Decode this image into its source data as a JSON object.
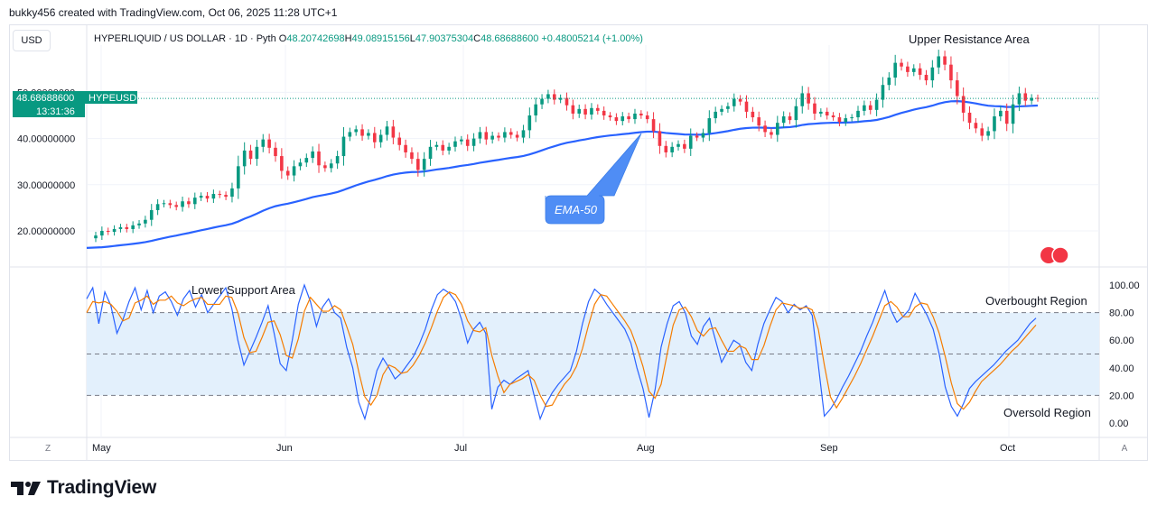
{
  "header": {
    "credit": "bukky456 created with TradingView.com, Oct 06, 2025 11:28 UTC+1",
    "currency": "USD",
    "symbol_line": "HYPERLIQUID / US DOLLAR · 1D · Pyth",
    "ohlc": {
      "o_label": "O",
      "o": "48.20742698",
      "h_label": "H",
      "h": "49.08915156",
      "l_label": "L",
      "l": "47.90375304",
      "c_label": "C",
      "c": "48.68688600",
      "change": "+0.48005214 (+1.00%)"
    }
  },
  "price_tag": {
    "price": "48.68688600",
    "symbol": "HYPEUSD",
    "countdown": "13:31:36"
  },
  "buttons": {
    "z": "Z",
    "a": "A"
  },
  "brand": "TradingView",
  "colors": {
    "up": "#089981",
    "down": "#f23645",
    "ema": "#2962ff",
    "stoch_k": "#2962ff",
    "stoch_d": "#f57c00",
    "band": "#e3f0fc",
    "tag": "#089981",
    "callout": "#4f8df5"
  },
  "chart_data": [
    {
      "type": "candlestick",
      "symbol": "HYPEUSD",
      "indicator": "EMA-50",
      "y_ticks": [
        "20.00000000",
        "30.00000000",
        "40.00000000",
        "50.00000000"
      ],
      "ylim": [
        14.5,
        58
      ],
      "x_ticks": [
        "May",
        "Jun",
        "Jul",
        "Aug",
        "Sep",
        "Oct"
      ],
      "annotations": {
        "upper": "Upper Resistance Area",
        "ema_label": "EMA-50"
      },
      "last_close": 48.69,
      "closes": [
        19.0,
        20.0,
        19.8,
        20.4,
        20.8,
        20.4,
        21.2,
        21.6,
        22.4,
        24.5,
        25.8,
        26.0,
        25.6,
        25.2,
        26.4,
        25.8,
        27.2,
        27.6,
        27.0,
        28.0,
        27.8,
        27.4,
        29.2,
        34.0,
        37.4,
        35.6,
        38.2,
        39.8,
        38.0,
        36.2,
        33.0,
        32.0,
        34.0,
        34.8,
        35.8,
        37.2,
        34.2,
        33.6,
        34.6,
        36.2,
        40.4,
        41.4,
        42.0,
        40.6,
        41.2,
        39.2,
        40.8,
        42.6,
        40.2,
        38.6,
        37.0,
        35.6,
        33.2,
        35.6,
        38.2,
        38.6,
        37.4,
        38.2,
        39.4,
        39.8,
        38.4,
        40.0,
        41.4,
        39.8,
        40.6,
        40.2,
        41.4,
        40.8,
        40.2,
        41.8,
        45.0,
        47.4,
        48.6,
        49.6,
        48.4,
        48.8,
        47.2,
        45.4,
        46.4,
        45.2,
        46.6,
        46.0,
        45.0,
        44.6,
        43.8,
        44.8,
        44.2,
        45.4,
        45.0,
        44.2,
        41.6,
        38.4,
        37.0,
        38.2,
        38.8,
        37.8,
        40.6,
        40.2,
        41.2,
        44.4,
        45.8,
        46.4,
        47.0,
        48.6,
        48.0,
        45.8,
        44.6,
        42.8,
        41.4,
        40.8,
        43.4,
        44.8,
        44.0,
        47.0,
        49.8,
        47.6,
        45.4,
        45.8,
        45.0,
        44.6,
        43.6,
        44.4,
        44.6,
        46.0,
        47.2,
        46.2,
        48.4,
        51.6,
        53.2,
        56.4,
        55.6,
        54.4,
        55.2,
        53.8,
        52.6,
        55.4,
        57.8,
        56.0,
        52.6,
        49.2,
        45.6,
        43.4,
        42.2,
        40.6,
        41.6,
        44.8,
        46.0,
        43.2,
        47.4,
        49.8,
        48.2,
        48.8,
        48.69
      ]
    },
    {
      "type": "line",
      "indicator": "Stochastic",
      "y_ticks": [
        "100.00",
        "80.00",
        "60.00",
        "40.00",
        "20.00",
        "0.00"
      ],
      "ylim": [
        -3,
        105
      ],
      "levels": [
        80,
        50,
        20
      ],
      "annotations": {
        "lower": "Lower Support Area",
        "overbought": "Overbought Region",
        "oversold": "Oversold Region"
      },
      "k": [
        90,
        98,
        72,
        95,
        85,
        65,
        75,
        88,
        98,
        82,
        96,
        80,
        92,
        95,
        88,
        78,
        90,
        96,
        84,
        93,
        80,
        86,
        92,
        98,
        83,
        60,
        42,
        52,
        62,
        73,
        85,
        65,
        43,
        38,
        60,
        86,
        100,
        88,
        70,
        84,
        90,
        80,
        76,
        55,
        40,
        15,
        3,
        20,
        38,
        47,
        40,
        32,
        36,
        42,
        48,
        57,
        68,
        82,
        93,
        97,
        94,
        88,
        75,
        58,
        68,
        73,
        65,
        10,
        26,
        31,
        28,
        32,
        35,
        38,
        20,
        3,
        14,
        22,
        28,
        33,
        38,
        52,
        72,
        88,
        97,
        93,
        86,
        80,
        74,
        68,
        58,
        40,
        25,
        4,
        24,
        55,
        72,
        85,
        88,
        80,
        63,
        57,
        70,
        76,
        60,
        44,
        52,
        60,
        57,
        44,
        38,
        57,
        72,
        82,
        91,
        88,
        80,
        86,
        82,
        85,
        78,
        42,
        5,
        10,
        17,
        26,
        34,
        43,
        52,
        63,
        73,
        85,
        96,
        82,
        73,
        77,
        82,
        94,
        86,
        78,
        68,
        50,
        26,
        12,
        5,
        14,
        25,
        30,
        34,
        38,
        42,
        47,
        52,
        56,
        60,
        66,
        72,
        76
      ],
      "d": [
        80,
        88,
        87,
        88,
        86,
        81,
        74,
        76,
        87,
        89,
        92,
        86,
        89,
        89,
        92,
        87,
        85,
        88,
        90,
        91,
        86,
        86,
        86,
        92,
        91,
        80,
        62,
        51,
        52,
        62,
        73,
        74,
        64,
        49,
        47,
        61,
        81,
        91,
        86,
        81,
        81,
        85,
        82,
        70,
        57,
        37,
        19,
        13,
        20,
        35,
        42,
        40,
        36,
        37,
        42,
        49,
        58,
        69,
        81,
        91,
        95,
        93,
        86,
        74,
        67,
        66,
        69,
        49,
        34,
        22,
        28,
        30,
        32,
        35,
        31,
        20,
        12,
        13,
        21,
        28,
        33,
        41,
        54,
        71,
        86,
        93,
        92,
        86,
        80,
        74,
        67,
        55,
        41,
        23,
        18,
        28,
        50,
        71,
        82,
        84,
        77,
        67,
        63,
        68,
        69,
        60,
        52,
        52,
        56,
        54,
        46,
        46,
        56,
        70,
        82,
        87,
        86,
        85,
        83,
        84,
        82,
        68,
        42,
        19,
        11,
        18,
        26,
        34,
        43,
        53,
        63,
        74,
        85,
        88,
        84,
        77,
        77,
        84,
        87,
        86,
        77,
        65,
        48,
        29,
        14,
        10,
        15,
        23,
        30,
        34,
        38,
        42,
        47,
        52,
        56,
        61,
        66,
        71
      ]
    }
  ]
}
